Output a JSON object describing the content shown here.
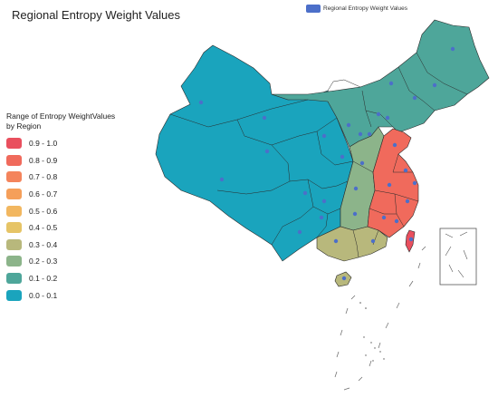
{
  "title": "Regional Entropy Weight Values",
  "top_legend": {
    "label": "Regional Entropy Weight Values",
    "color": "#4c6fc9"
  },
  "legend": {
    "title": "Range of Entropy WeightValues by Region",
    "items": [
      {
        "label": "0.9 - 1.0",
        "color": "#e94f5e"
      },
      {
        "label": "0.8 - 0.9",
        "color": "#f06a5c"
      },
      {
        "label": "0.7 - 0.8",
        "color": "#f4845c"
      },
      {
        "label": "0.6 - 0.7",
        "color": "#f59f5a"
      },
      {
        "label": "0.5 - 0.6",
        "color": "#f2b760"
      },
      {
        "label": "0.4 - 0.5",
        "color": "#e6c466"
      },
      {
        "label": "0.3 - 0.4",
        "color": "#b8b87c"
      },
      {
        "label": "0.2 - 0.3",
        "color": "#8cb48a"
      },
      {
        "label": "0.1 - 0.2",
        "color": "#4ea69a"
      },
      {
        "label": "0.0 - 0.1",
        "color": "#1aa4bd"
      }
    ]
  },
  "map": {
    "point_color": "#4c6fc9",
    "border_color": "#2a2a2a"
  }
}
